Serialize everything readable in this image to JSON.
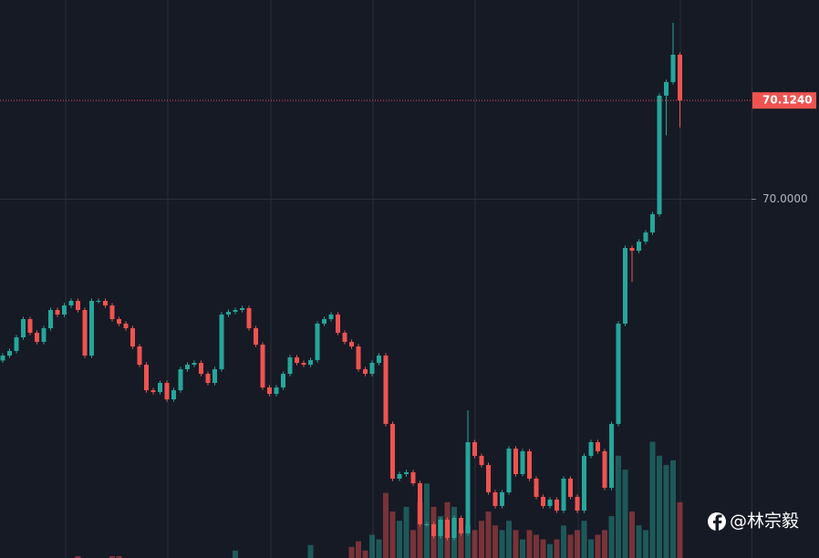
{
  "chart_data": {
    "type": "candlestick",
    "ylim": [
      69.5469,
      70.2507
    ],
    "yticks": [
      {
        "value": 70,
        "label": "70.0000"
      }
    ],
    "grid": true,
    "last_price": {
      "value": 70.124,
      "label": "70.1240"
    },
    "up_color": "#26a69a",
    "down_color": "#ef5350",
    "watermark": "@林宗毅",
    "y2lim": [
      0,
      600
    ],
    "open": [
      69.796,
      69.8022,
      69.808,
      69.8252,
      69.8482,
      69.831,
      69.8195,
      69.8367,
      69.8597,
      69.854,
      69.8655,
      69.8712,
      69.8597,
      69.8022,
      69.8712,
      69.8712,
      69.8655,
      69.8482,
      69.8425,
      69.8367,
      69.8137,
      69.7907,
      69.7585,
      69.7562,
      69.7677,
      69.747,
      69.7585,
      69.785,
      69.7907,
      69.793,
      69.7792,
      69.7677,
      69.785,
      69.854,
      69.8574,
      69.8597,
      69.862,
      69.8367,
      69.816,
      69.762,
      69.7539,
      69.762,
      69.7792,
      69.7999,
      69.793,
      69.7907,
      69.7965,
      69.8425,
      69.8482,
      69.854,
      69.831,
      69.8195,
      69.8137,
      69.785,
      69.7792,
      69.793,
      69.8022,
      69.716,
      69.647,
      69.6527,
      69.655,
      69.6412,
      69.5895,
      69.5895,
      69.5745,
      69.5952,
      69.5722,
      69.5975,
      69.578,
      69.693,
      69.6757,
      69.6642,
      69.6297,
      69.6125,
      69.6297,
      69.6849,
      69.6527,
      69.6815,
      69.647,
      69.624,
      69.6125,
      69.6205,
      69.6067,
      69.647,
      69.624,
      69.6067,
      69.6757,
      69.693,
      69.6815,
      69.6355,
      69.716,
      69.8425,
      69.9379,
      69.9345,
      69.946,
      69.9575,
      69.9805,
      70.13,
      70.1472,
      70.1817
    ],
    "high": [
      69.8052,
      69.811,
      69.8282,
      69.8512,
      69.8512,
      69.834,
      69.8397,
      69.8627,
      69.8627,
      69.8685,
      69.8742,
      69.8742,
      69.8627,
      69.8742,
      69.8742,
      69.8742,
      69.8685,
      69.8512,
      69.8455,
      69.8397,
      69.8167,
      69.7937,
      69.7615,
      69.7707,
      69.7707,
      69.7615,
      69.788,
      69.7937,
      69.796,
      69.796,
      69.7822,
      69.788,
      69.857,
      69.8604,
      69.8627,
      69.865,
      69.865,
      69.8397,
      69.819,
      69.765,
      69.765,
      69.7822,
      69.8029,
      69.8029,
      69.796,
      69.7995,
      69.8455,
      69.8512,
      69.857,
      69.857,
      69.834,
      69.8225,
      69.8167,
      69.788,
      69.796,
      69.8052,
      69.8052,
      69.719,
      69.6557,
      69.658,
      69.658,
      69.6442,
      69.5925,
      69.5925,
      69.5982,
      69.5982,
      69.6005,
      69.6005,
      69.733,
      69.696,
      69.6787,
      69.6672,
      69.6327,
      69.6327,
      69.6879,
      69.6879,
      69.6845,
      69.6845,
      69.65,
      69.627,
      69.6235,
      69.6235,
      69.65,
      69.65,
      69.627,
      69.6787,
      69.696,
      69.696,
      69.6845,
      69.719,
      69.8455,
      69.9409,
      69.9409,
      69.949,
      69.9605,
      69.9835,
      70.133,
      70.1502,
      70.222,
      70.1847
    ],
    "low": [
      69.793,
      69.7992,
      69.805,
      69.8222,
      69.828,
      69.8165,
      69.8165,
      69.8337,
      69.851,
      69.851,
      69.8625,
      69.8567,
      69.7992,
      69.7992,
      69.8682,
      69.8625,
      69.8452,
      69.8395,
      69.8337,
      69.8107,
      69.7877,
      69.7555,
      69.7532,
      69.7532,
      69.744,
      69.744,
      69.7555,
      69.782,
      69.7877,
      69.7762,
      69.7647,
      69.7647,
      69.782,
      69.851,
      69.8544,
      69.8567,
      69.8337,
      69.813,
      69.759,
      69.7509,
      69.7509,
      69.759,
      69.7762,
      69.79,
      69.7877,
      69.7877,
      69.7935,
      69.8395,
      69.8452,
      69.828,
      69.8165,
      69.8107,
      69.782,
      69.7762,
      69.7762,
      69.79,
      69.713,
      69.644,
      69.644,
      69.6497,
      69.6382,
      69.5865,
      69.5865,
      69.5715,
      69.5715,
      69.5692,
      69.5692,
      69.575,
      69.575,
      69.6727,
      69.6612,
      69.6267,
      69.6095,
      69.6095,
      69.6267,
      69.6497,
      69.6497,
      69.644,
      69.621,
      69.6095,
      69.6095,
      69.6037,
      69.6037,
      69.621,
      69.6037,
      69.6037,
      69.6727,
      69.6785,
      69.6325,
      69.6325,
      69.713,
      69.8395,
      69.895,
      69.9315,
      69.943,
      69.9545,
      69.9775,
      70.08,
      70.1442,
      70.09
    ],
    "close": [
      69.8022,
      69.808,
      69.8252,
      69.8482,
      69.831,
      69.8195,
      69.8367,
      69.8597,
      69.854,
      69.8655,
      69.8712,
      69.8597,
      69.8022,
      69.8712,
      69.8712,
      69.8655,
      69.8482,
      69.8425,
      69.8367,
      69.8137,
      69.7907,
      69.7585,
      69.7562,
      69.7677,
      69.747,
      69.7585,
      69.785,
      69.7907,
      69.793,
      69.7792,
      69.7677,
      69.785,
      69.854,
      69.8574,
      69.8597,
      69.862,
      69.8367,
      69.816,
      69.762,
      69.7539,
      69.762,
      69.7792,
      69.7999,
      69.793,
      69.7907,
      69.7965,
      69.8425,
      69.8482,
      69.854,
      69.831,
      69.8195,
      69.8137,
      69.785,
      69.7792,
      69.793,
      69.8022,
      69.716,
      69.647,
      69.6527,
      69.655,
      69.6412,
      69.5895,
      69.5895,
      69.5745,
      69.5952,
      69.5722,
      69.5975,
      69.578,
      69.693,
      69.6757,
      69.6642,
      69.6297,
      69.6125,
      69.6297,
      69.6849,
      69.6527,
      69.6815,
      69.647,
      69.624,
      69.6125,
      69.6205,
      69.6067,
      69.647,
      69.624,
      69.6067,
      69.6757,
      69.693,
      69.6815,
      69.6355,
      69.716,
      69.8425,
      69.9379,
      69.9345,
      69.946,
      69.9575,
      69.9805,
      70.13,
      70.1472,
      70.1817,
      70.124
    ],
    "volume": [
      0,
      0,
      0,
      0,
      0,
      0,
      0,
      0,
      0,
      0,
      0,
      2,
      0,
      0,
      0,
      0,
      2,
      2,
      0,
      0,
      0,
      0,
      0,
      0,
      0,
      0,
      0,
      0,
      0,
      0,
      0,
      0,
      0,
      0,
      8,
      0,
      0,
      0,
      0,
      0,
      0,
      0,
      0,
      0,
      0,
      14,
      0,
      0,
      0,
      0,
      0,
      12,
      18,
      8,
      25,
      20,
      70,
      50,
      40,
      55,
      30,
      60,
      80,
      55,
      45,
      60,
      55,
      30,
      35,
      30,
      40,
      50,
      35,
      30,
      40,
      30,
      20,
      30,
      25,
      20,
      15,
      20,
      35,
      25,
      30,
      40,
      20,
      25,
      30,
      45,
      110,
      95,
      50,
      35,
      30,
      125,
      110,
      100,
      105,
      60
    ]
  }
}
